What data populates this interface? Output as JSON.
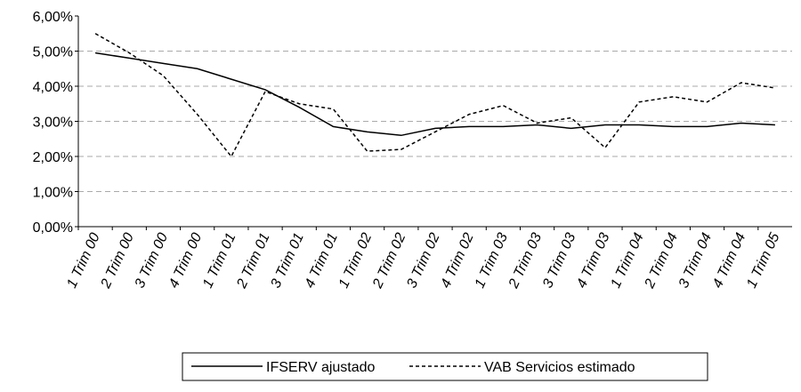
{
  "chart_data": {
    "type": "line",
    "categories": [
      "1 Trim 00",
      "2 Trim 00",
      "3 Trim 00",
      "4 Trim 00",
      "1 Trim 01",
      "2 Trim 01",
      "3 Trim 01",
      "4 Trim 01",
      "1 Trim 02",
      "2 Trim 02",
      "3 Trim 02",
      "4 Trim 02",
      "1 Trim 03",
      "2 Trim 03",
      "3 Trim 03",
      "4 Trim 03",
      "1 Trim 04",
      "2 Trim 04",
      "3 Trim 04",
      "4 Trim 04",
      "1 Trim 05"
    ],
    "series": [
      {
        "name": "IFSERV ajustado",
        "color": "#000000",
        "style": "solid",
        "values": [
          4.95,
          4.8,
          4.65,
          4.5,
          4.2,
          3.9,
          3.4,
          2.85,
          2.7,
          2.6,
          2.8,
          2.85,
          2.85,
          2.9,
          2.8,
          2.9,
          2.9,
          2.85,
          2.85,
          2.95,
          2.9
        ]
      },
      {
        "name": "VAB Servicios estimado",
        "color": "#000000",
        "style": "dashed",
        "values": [
          5.5,
          4.95,
          4.3,
          3.2,
          2.0,
          3.85,
          3.5,
          3.35,
          2.15,
          2.2,
          2.7,
          3.2,
          3.45,
          2.95,
          3.1,
          2.25,
          3.55,
          3.7,
          3.55,
          4.1,
          3.95
        ]
      }
    ],
    "ylim": [
      0,
      6
    ],
    "yticks": [
      {
        "value": 0,
        "label": "0,00%"
      },
      {
        "value": 1,
        "label": "1,00%"
      },
      {
        "value": 2,
        "label": "2,00%"
      },
      {
        "value": 3,
        "label": "3,00%"
      },
      {
        "value": 4,
        "label": "4,00%"
      },
      {
        "value": 5,
        "label": "5,00%"
      },
      {
        "value": 6,
        "label": "6,00%"
      }
    ],
    "grid": true,
    "legend": "bottom"
  }
}
